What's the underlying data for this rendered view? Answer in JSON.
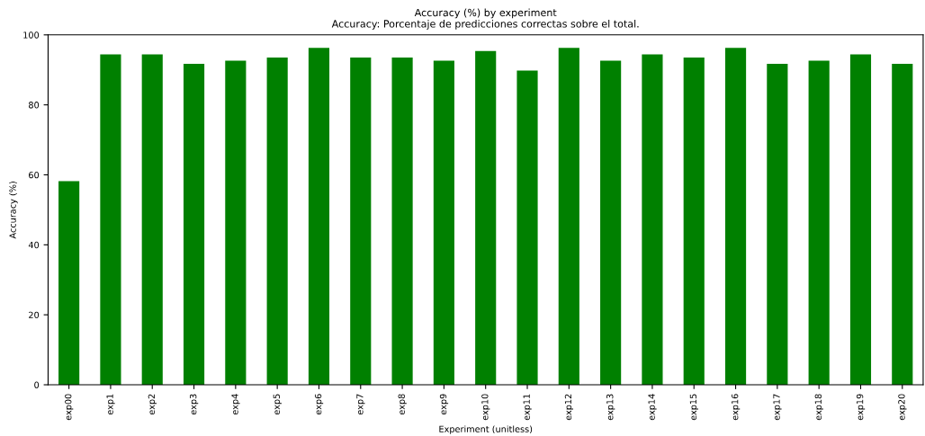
{
  "chart_data": {
    "type": "bar",
    "title": "Accuracy (%) by experiment",
    "subtitle": "Accuracy: Porcentaje de predicciones correctas sobre el total.",
    "xlabel": "Experiment (unitless)",
    "ylabel": "Accuracy (%)",
    "categories": [
      "exp00",
      "exp1",
      "exp2",
      "exp3",
      "exp4",
      "exp5",
      "exp6",
      "exp7",
      "exp8",
      "exp9",
      "exp10",
      "exp11",
      "exp12",
      "exp13",
      "exp14",
      "exp15",
      "exp16",
      "exp17",
      "exp18",
      "exp19",
      "exp20"
    ],
    "values": [
      58.2,
      94.4,
      94.4,
      91.7,
      92.6,
      93.5,
      96.3,
      93.5,
      93.5,
      92.6,
      95.4,
      89.8,
      96.3,
      92.6,
      94.4,
      93.5,
      96.3,
      91.7,
      92.6,
      94.4,
      91.7
    ],
    "color": "#008000",
    "ylim": [
      0,
      100
    ],
    "yticks": [
      0,
      20,
      40,
      60,
      80,
      100
    ],
    "grid": false,
    "legend": false
  }
}
